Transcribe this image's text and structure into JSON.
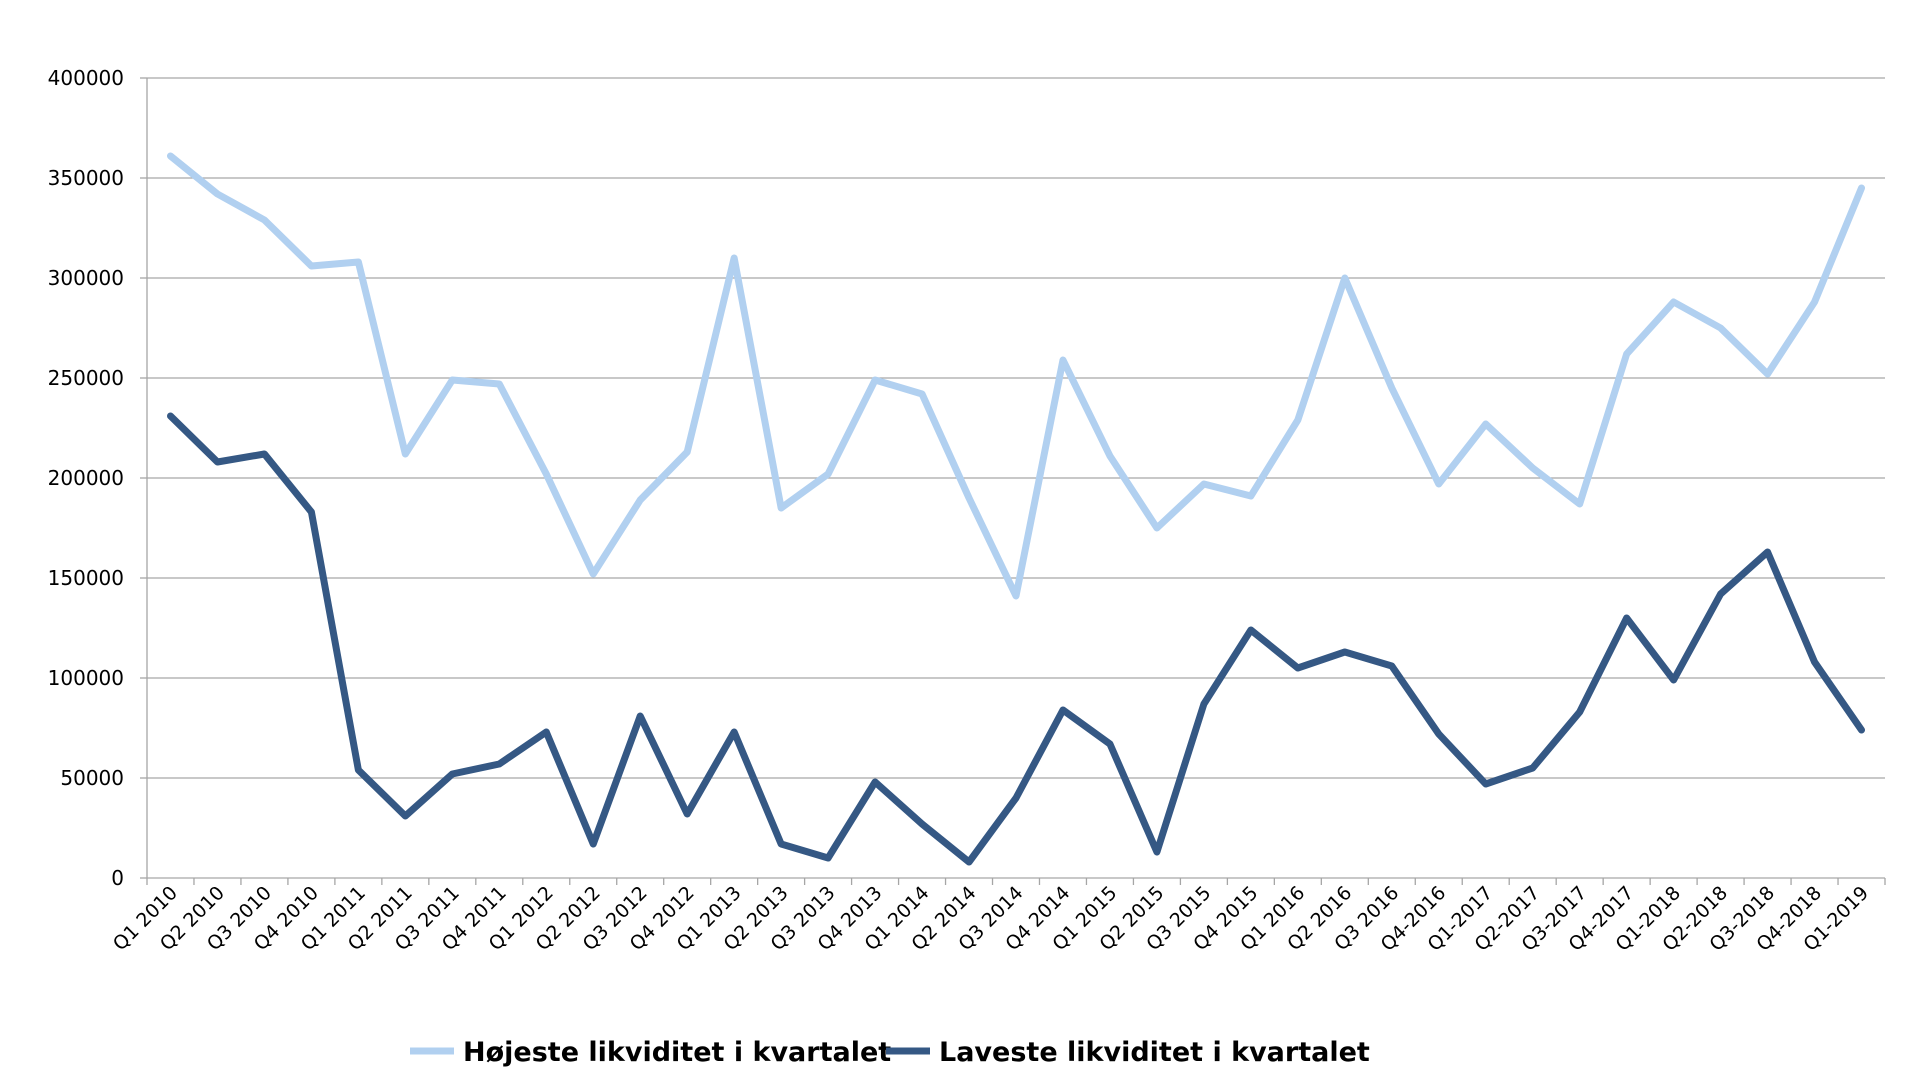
{
  "chart_data": {
    "type": "line",
    "title": "",
    "xlabel": "",
    "ylabel": "",
    "ylim": [
      0,
      400000
    ],
    "yticks": [
      0,
      50000,
      100000,
      150000,
      200000,
      250000,
      300000,
      350000,
      400000
    ],
    "grid": "horizontal",
    "legend_position": "bottom",
    "categories": [
      "Q1 2010",
      "Q2 2010",
      "Q3 2010",
      "Q4 2010",
      "Q1 2011",
      "Q2 2011",
      "Q3 2011",
      "Q4 2011",
      "Q1 2012",
      "Q2 2012",
      "Q3 2012",
      "Q4 2012",
      "Q1 2013",
      "Q2 2013",
      "Q3 2013",
      "Q4 2013",
      "Q1 2014",
      "Q2 2014",
      "Q3 2014",
      "Q4 2014",
      "Q1 2015",
      "Q2 2015",
      "Q3 2015",
      "Q4 2015",
      "Q1 2016",
      "Q2 2016",
      "Q3 2016",
      "Q4-2016",
      "Q1-2017",
      "Q2-2017",
      "Q3-2017",
      "Q4-2017",
      "Q1-2018",
      "Q2-2018",
      "Q3-2018",
      "Q4-2018",
      "Q1-2019"
    ],
    "series": [
      {
        "name": "Højeste likviditet i kvartalet",
        "color": "#b1d0f0",
        "values": [
          361000,
          342000,
          329000,
          306000,
          308000,
          212000,
          249000,
          247000,
          202000,
          152000,
          189000,
          213000,
          310000,
          185000,
          202000,
          249000,
          242000,
          190000,
          141000,
          259000,
          211000,
          175000,
          197000,
          191000,
          229000,
          300000,
          245000,
          197000,
          227000,
          205000,
          187000,
          262000,
          288000,
          275000,
          252000,
          288000,
          345000
        ]
      },
      {
        "name": "Laveste likviditet i kvartalet",
        "color": "#355884",
        "values": [
          231000,
          208000,
          212000,
          183000,
          54000,
          31000,
          52000,
          57000,
          73000,
          17000,
          81000,
          32000,
          73000,
          17000,
          10000,
          48000,
          27000,
          8000,
          40000,
          84000,
          67000,
          13000,
          87000,
          124000,
          105000,
          113000,
          106000,
          72000,
          47000,
          55000,
          83000,
          130000,
          99000,
          142000,
          163000,
          108000,
          74000
        ]
      }
    ]
  }
}
